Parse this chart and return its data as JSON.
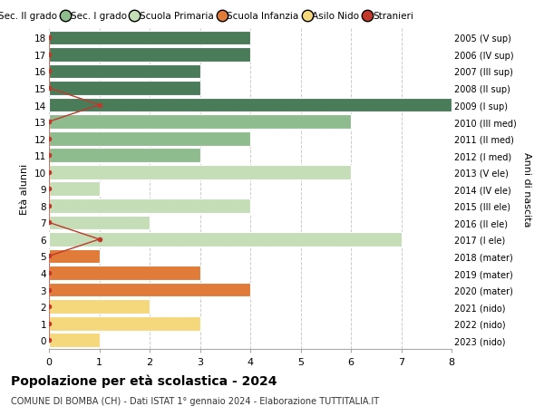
{
  "ages": [
    18,
    17,
    16,
    15,
    14,
    13,
    12,
    11,
    10,
    9,
    8,
    7,
    6,
    5,
    4,
    3,
    2,
    1,
    0
  ],
  "years": [
    "2005 (V sup)",
    "2006 (IV sup)",
    "2007 (III sup)",
    "2008 (II sup)",
    "2009 (I sup)",
    "2010 (III med)",
    "2011 (II med)",
    "2012 (I med)",
    "2013 (V ele)",
    "2014 (IV ele)",
    "2015 (III ele)",
    "2016 (II ele)",
    "2017 (I ele)",
    "2018 (mater)",
    "2019 (mater)",
    "2020 (mater)",
    "2021 (nido)",
    "2022 (nido)",
    "2023 (nido)"
  ],
  "values": [
    4,
    4,
    3,
    3,
    8,
    6,
    4,
    3,
    6,
    1,
    4,
    2,
    7,
    1,
    3,
    4,
    2,
    3,
    1
  ],
  "bar_colors": [
    "#4a7c59",
    "#4a7c59",
    "#4a7c59",
    "#4a7c59",
    "#4a7c59",
    "#8fbc8f",
    "#8fbc8f",
    "#8fbc8f",
    "#c5deb8",
    "#c5deb8",
    "#c5deb8",
    "#c5deb8",
    "#c5deb8",
    "#e07b39",
    "#e07b39",
    "#e07b39",
    "#f5d87c",
    "#f5d87c",
    "#f5d87c"
  ],
  "stranieri_x": [
    0,
    0,
    0,
    0,
    1,
    0,
    0,
    0,
    0,
    0,
    0,
    0,
    1,
    0,
    0,
    0,
    0,
    0,
    0
  ],
  "legend_labels": [
    "Sec. II grado",
    "Sec. I grado",
    "Scuola Primaria",
    "Scuola Infanzia",
    "Asilo Nido",
    "Stranieri"
  ],
  "legend_colors": [
    "#4a7c59",
    "#8fbc8f",
    "#c5deb8",
    "#e07b39",
    "#f5d87c",
    "#c0392b"
  ],
  "title": "Popolazione per età scolastica - 2024",
  "subtitle": "COMUNE DI BOMBA (CH) - Dati ISTAT 1° gennaio 2024 - Elaborazione TUTTITALIA.IT",
  "ylabel": "Età alunni",
  "ylabel_right": "Anni di nascita",
  "xlim": [
    0,
    8
  ],
  "background_color": "#ffffff",
  "grid_color": "#cccccc",
  "bar_height": 0.85
}
